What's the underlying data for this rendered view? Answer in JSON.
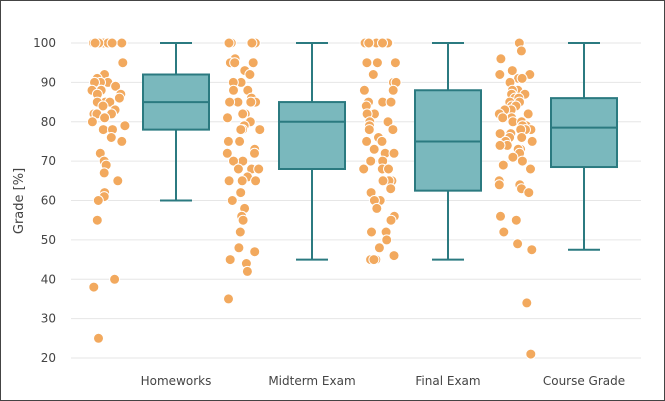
{
  "chart_data": {
    "type": "box",
    "ylabel": "Grade [%]",
    "ylim": [
      18,
      104
    ],
    "yticks": [
      "20",
      "30",
      "40",
      "50",
      "60",
      "70",
      "80",
      "90",
      "100"
    ],
    "grid": "horizontal",
    "box_color": "#7ab8bd",
    "box_line_color": "#2b7a80",
    "point_color": "#f2a95e",
    "categories": [
      "Homeworks",
      "Midterm Exam",
      "Final Exam",
      "Course Grade"
    ],
    "series": [
      {
        "q1": 78,
        "median": 85,
        "q3": 92,
        "whisker_low": 60,
        "whisker_high": 100,
        "points": [
          100,
          100,
          100,
          100,
          100,
          100,
          100,
          100,
          100,
          100,
          100,
          95,
          92,
          91,
          90,
          90,
          90,
          89,
          88,
          88,
          88,
          87,
          87,
          86,
          85,
          85,
          85,
          84,
          83,
          82,
          82,
          82,
          81,
          80,
          79,
          78,
          78,
          76,
          75,
          72,
          70,
          69,
          67,
          65,
          62,
          61,
          60,
          55,
          40,
          38,
          25
        ]
      },
      {
        "q1": 68,
        "median": 80,
        "q3": 85,
        "whisker_low": 45,
        "whisker_high": 100,
        "points": [
          100,
          100,
          100,
          100,
          96,
          95,
          95,
          95,
          93,
          92,
          90,
          90,
          90,
          88,
          88,
          86,
          85,
          85,
          85,
          85,
          85,
          82,
          82,
          81,
          80,
          80,
          79,
          78,
          78,
          78,
          75,
          75,
          73,
          72,
          72,
          70,
          70,
          68,
          68,
          68,
          66,
          65,
          65,
          65,
          62,
          60,
          58,
          56,
          55,
          52,
          48,
          47,
          45,
          44,
          42,
          35
        ]
      },
      {
        "q1": 62.5,
        "median": 75,
        "q3": 88,
        "whisker_low": 45,
        "whisker_high": 100,
        "points": [
          100,
          100,
          100,
          100,
          100,
          100,
          100,
          95,
          95,
          95,
          92,
          90,
          90,
          88,
          88,
          85,
          85,
          85,
          84,
          82,
          82,
          80,
          80,
          79,
          78,
          78,
          76,
          75,
          75,
          73,
          72,
          72,
          70,
          70,
          68,
          68,
          68,
          65,
          65,
          65,
          63,
          62,
          60,
          60,
          58,
          56,
          55,
          52,
          52,
          50,
          48,
          46,
          45,
          45,
          45
        ]
      },
      {
        "q1": 68.5,
        "median": 78.5,
        "q3": 86,
        "whisker_low": 47.5,
        "whisker_high": 100,
        "points": [
          100,
          98,
          96,
          93,
          92,
          92,
          91,
          91,
          90,
          88,
          88,
          87,
          87,
          86,
          86,
          85,
          85,
          84,
          84,
          83,
          83,
          82,
          82,
          81,
          81,
          80,
          80,
          80,
          79,
          79,
          78,
          78,
          78,
          77,
          77,
          76,
          76,
          75,
          75,
          74,
          74,
          73,
          73,
          72,
          71,
          70,
          69,
          68,
          65,
          65,
          64,
          64,
          63,
          62,
          56,
          55,
          52,
          49,
          47.5,
          34,
          21
        ]
      }
    ]
  }
}
